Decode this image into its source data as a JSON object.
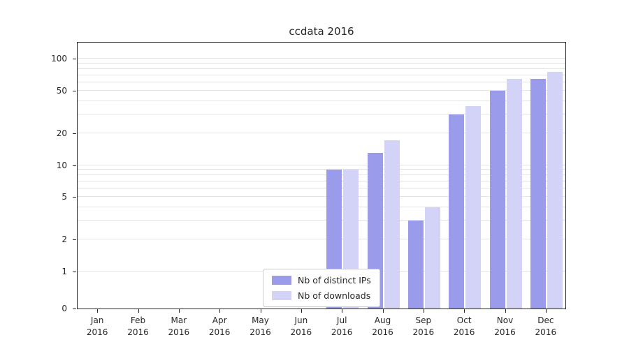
{
  "colors": {
    "distinct_ips": "#9b9bec",
    "downloads": "#d3d3f8",
    "grid": "#e3e3e3",
    "spine": "#262626",
    "legend_border": "#cccccc"
  },
  "chart_data": {
    "type": "bar",
    "title": "ccdata 2016",
    "year_label": "2016",
    "categories": [
      "Jan",
      "Feb",
      "Mar",
      "Apr",
      "May",
      "Jun",
      "Jul",
      "Aug",
      "Sep",
      "Oct",
      "Nov",
      "Dec"
    ],
    "series": [
      {
        "name": "Nb of distinct IPs",
        "color_key": "distinct_ips",
        "values": [
          0,
          0,
          0,
          0,
          0,
          0,
          9,
          13,
          3,
          30,
          50,
          65
        ]
      },
      {
        "name": "Nb of downloads",
        "color_key": "downloads",
        "values": [
          0,
          0,
          0,
          0,
          0,
          0,
          9,
          17,
          4,
          36,
          65,
          75
        ]
      }
    ],
    "yscale": "symlog",
    "yticks": [
      0,
      1,
      2,
      5,
      10,
      20,
      50,
      100
    ],
    "minor_yticks": [
      3,
      4,
      6,
      7,
      8,
      9,
      30,
      40,
      60,
      70,
      80,
      90
    ],
    "ylim": [
      0,
      140
    ],
    "grid": true,
    "legend_position": "lower center",
    "xlabel": "",
    "ylabel": ""
  }
}
